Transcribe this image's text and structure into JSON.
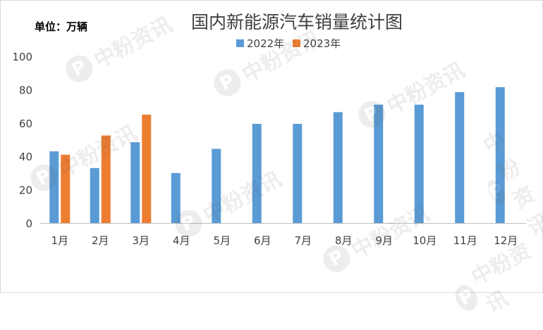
{
  "watermark": {
    "text": "中粉资讯",
    "logo_letter": "P"
  },
  "chart_data": {
    "type": "bar",
    "title": "国内新能源汽车销量统计图",
    "unit_label": "单位：万辆",
    "categories": [
      "1月",
      "2月",
      "3月",
      "4月",
      "5月",
      "6月",
      "7月",
      "8月",
      "9月",
      "10月",
      "11月",
      "12月"
    ],
    "series": [
      {
        "name": "2022年",
        "color": "#5b9bd5",
        "values": [
          43,
          33,
          48.5,
          30,
          44.5,
          59.5,
          59.5,
          66.5,
          71,
          71,
          78.5,
          81.5
        ]
      },
      {
        "name": "2023年",
        "color": "#ed7d31",
        "values": [
          41,
          52.5,
          65,
          null,
          null,
          null,
          null,
          null,
          null,
          null,
          null,
          null
        ]
      }
    ],
    "ylim": [
      0,
      100
    ],
    "yticks": [
      0,
      20,
      40,
      60,
      80,
      100
    ],
    "grid": false,
    "legend": "top-center"
  }
}
